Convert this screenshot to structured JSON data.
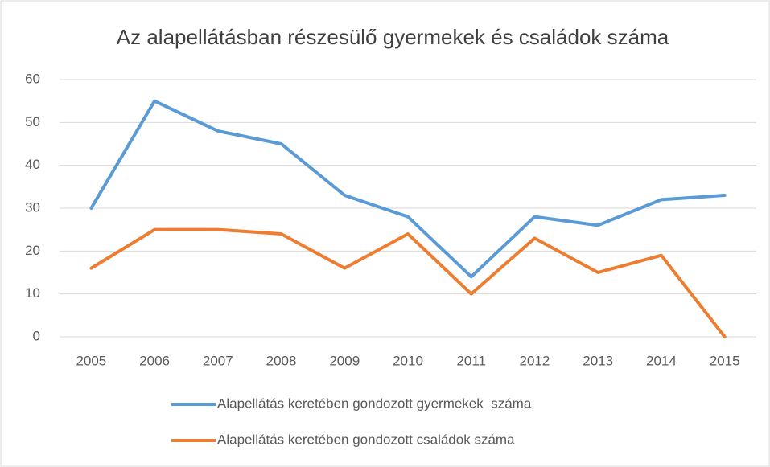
{
  "chart_data": {
    "type": "line",
    "title": "Az alapellátásban részesülő gyermekek és családok száma",
    "categories": [
      "2005",
      "2006",
      "2007",
      "2008",
      "2009",
      "2010",
      "2011",
      "2012",
      "2013",
      "2014",
      "2015"
    ],
    "series": [
      {
        "name": "Alapellátás keretében gondozott gyermekek  száma",
        "color": "#5b9bd5",
        "values": [
          30,
          55,
          48,
          45,
          33,
          28,
          14,
          28,
          26,
          32,
          33
        ]
      },
      {
        "name": "Alapellátás keretében gondozott családok száma",
        "color": "#ed7d31",
        "values": [
          16,
          25,
          25,
          24,
          16,
          24,
          10,
          23,
          15,
          19,
          0
        ]
      }
    ],
    "ylim": [
      0,
      60
    ],
    "yticks": [
      0,
      10,
      20,
      30,
      40,
      50,
      60
    ],
    "grid": true,
    "legend": "bottom"
  }
}
